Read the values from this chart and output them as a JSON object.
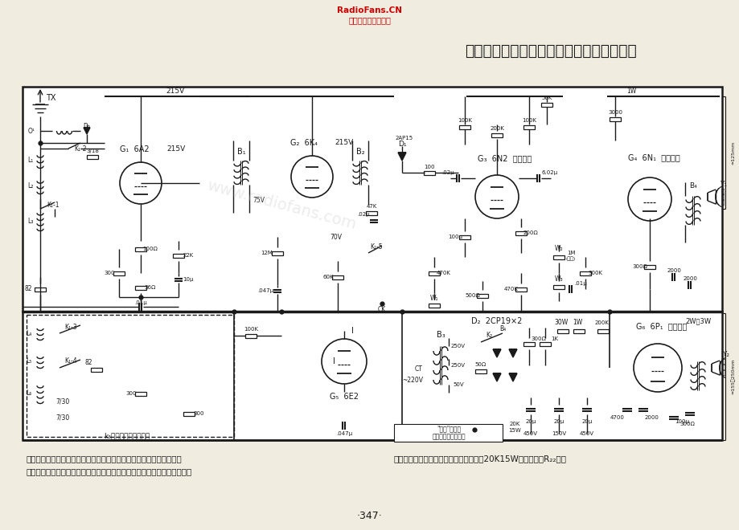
{
  "title": "红灯派生型交流六管二波段双频道仿立体声",
  "header_text_line1": "RadioFans.CN",
  "header_text_line2": "收音机爱好者资料库",
  "page_number": "·347·",
  "bg_color": "#f0ece0",
  "schematic_bg": "#ffffff",
  "line_color": "#1a1a1a",
  "text_color": "#1a1a1a",
  "red_color": "#cc0000",
  "title_fontsize": 14,
  "desc_left": "【说明】本机高低音分别调节，分频道放大，有显著的仿立体声效果，",
  "desc_left2": "能达到随意选择音色的要求，且电路简单，节省开支，安装用红灯底板，如",
  "desc_right": "嫌整流输出电压过高，可按虚线接入一个20K15W泄放电际（R₂₂）。",
  "watermark": "www.radiofans.com"
}
